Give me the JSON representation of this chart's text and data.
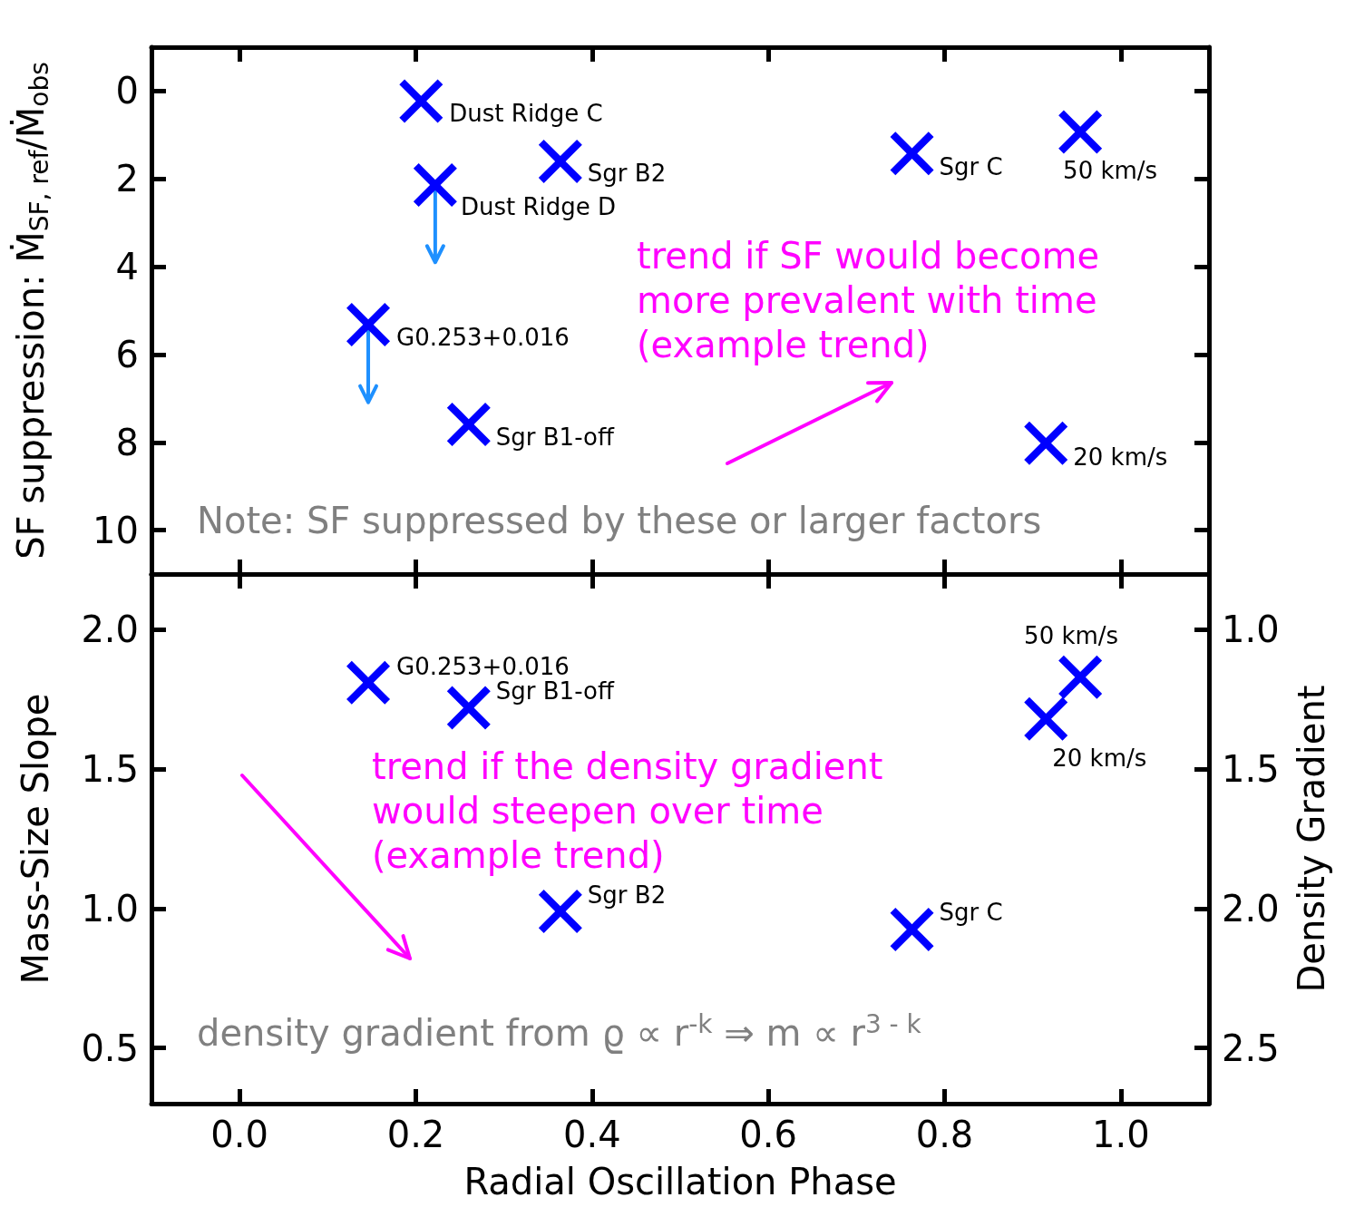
{
  "chart_data": [
    {
      "type": "scatter",
      "marker": "cross",
      "color": "#0000ff",
      "tick_labels": "y",
      "ylabel": "SF suppression: Ṁ$_{SF, ref}$/Ṁ$_{obs}$",
      "xlim": [
        -0.1,
        1.1
      ],
      "xticks": [
        0,
        0.2,
        0.4,
        0.6,
        0.8,
        1
      ],
      "ylim": [
        11,
        -1
      ],
      "yticks": [
        0,
        2,
        4,
        6,
        8,
        10
      ],
      "x": [
        0.206,
        0.364,
        0.222,
        0.146,
        0.26,
        0.763,
        0.954,
        0.915
      ],
      "values": [
        0.23,
        1.6,
        2.14,
        5.32,
        7.59,
        1.42,
        0.93,
        8.02
      ],
      "errors": [
        null,
        null,
        [
          2.14,
          3.9
        ],
        [
          5.32,
          7.09
        ],
        null,
        null,
        null,
        null
      ],
      "annotations": [
        {
          "text": "Dust Ridge C",
          "x": 0.206,
          "y": 0.23
        },
        {
          "text": "Sgr B2",
          "x": 0.364,
          "y": 1.6
        },
        {
          "text": "Dust Ridge D",
          "x": 0.222,
          "y": 2.14
        },
        {
          "text": "G0.253+0.016",
          "x": 0.146,
          "y": 5.32
        },
        {
          "text": "Sgr B1-off",
          "x": 0.26,
          "y": 7.59
        },
        {
          "text": "Sgr C",
          "x": 0.763,
          "y": 1.42
        },
        {
          "text": "50 km/s",
          "x": 0.954,
          "y": 0.93
        },
        {
          "text": "20 km/s",
          "x": 0.915,
          "y": 8.02
        },
        "trend if SF would become\nmore prevalent with time\n(example trend)",
        "Note: SF suppressed by these or larger factors"
      ]
    },
    {
      "type": "scatter",
      "marker": "cross",
      "color": "#0000ff",
      "xlabel": "Radial Oscillation Phase",
      "ylabel": "Mass-Size Slope",
      "y2label": "Density Gradient",
      "xlim": [
        -0.1,
        1.1
      ],
      "xticks": [
        {
          "value": 0,
          "label": "0.0"
        },
        0.2,
        0.4,
        0.6,
        0.8,
        {
          "value": 1,
          "label": "1.0"
        }
      ],
      "ylim": [
        0.3,
        2.2
      ],
      "yticks": [
        0.5,
        {
          "value": 1,
          "label": "1.0"
        },
        1.5,
        {
          "value": 2,
          "label": "2.0"
        }
      ],
      "y2lim": [
        2.7,
        0.8
      ],
      "y2ticks": [
        {
          "value": 1,
          "label": "1.0"
        },
        1.5,
        {
          "value": 2,
          "label": "2.0"
        },
        2.5
      ],
      "x": [
        0.146,
        0.26,
        0.954,
        0.915,
        0.364,
        0.763
      ],
      "values": [
        1.81,
        1.72,
        1.83,
        1.68,
        0.99,
        0.925
      ],
      "annotations": [
        {
          "text": "G0.253+0.016",
          "x": 0.146,
          "y": 1.81
        },
        {
          "text": "Sgr B1-off",
          "x": 0.26,
          "y": 1.72
        },
        {
          "text": "50 km/s",
          "x": 0.954,
          "y": 1.83
        },
        {
          "text": "20 km/s",
          "x": 0.915,
          "y": 1.68
        },
        {
          "text": "Sgr B2",
          "x": 0.364,
          "y": 0.99
        },
        {
          "text": "Sgr C",
          "x": 0.763,
          "y": 0.925
        },
        "trend if the density gradient\nwould steepen over time\n(example trend)",
        "density gradient from ϱ ∝ r$^{-k}$ ⇒ m ∝ r$^{3 - k}$"
      ]
    }
  ]
}
